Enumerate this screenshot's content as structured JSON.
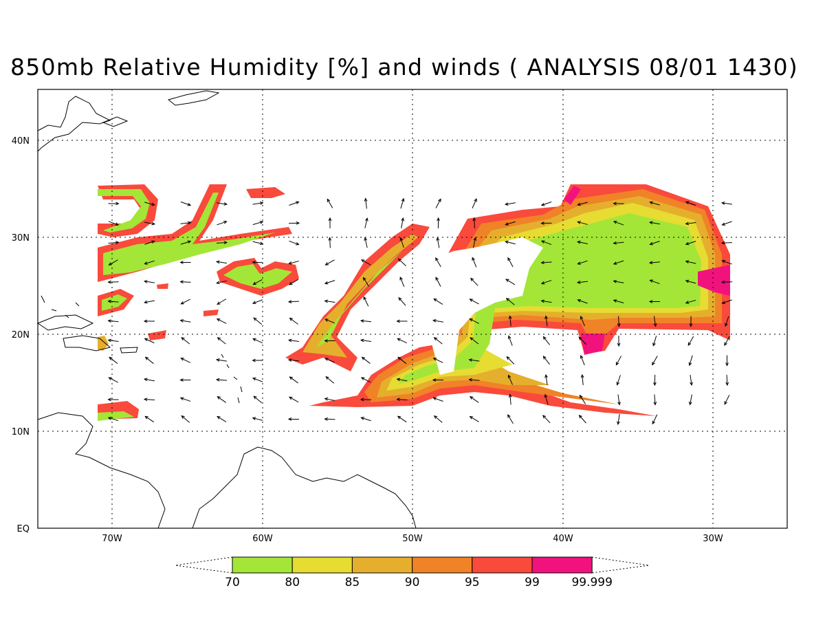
{
  "title": "850mb Relative Humidity [%] and winds ( ANALYSIS 08/01 1430)",
  "axes": {
    "lon_labels": [
      "70W",
      "60W",
      "50W",
      "40W",
      "30W"
    ],
    "lat_labels": [
      "40N",
      "30N",
      "20N",
      "10N",
      "EQ"
    ],
    "grid": "dotted"
  },
  "colorbar": {
    "labels": [
      "70",
      "80",
      "85",
      "90",
      "95",
      "99",
      "99.999"
    ],
    "colors": [
      "#a3e637",
      "#e6dc32",
      "#e5af2d",
      "#f08227",
      "#f94a3c",
      "#f2127d"
    ]
  }
}
